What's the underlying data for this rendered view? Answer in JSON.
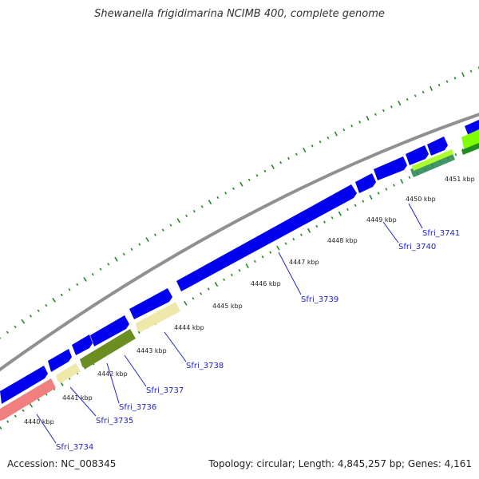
{
  "title": "Shewanella frigidimarina NCIMB 400, complete genome",
  "footer": {
    "accession": "Accession: NC_008345",
    "info": "Topology: circular; Length: 4,845,257 bp; Genes: 4,161"
  },
  "colors": {
    "backbone": "#909090",
    "forward_gene": "#0000ee",
    "reverse_gene_blue": "#0000ee",
    "pink_gene": "#f08080",
    "tan_gene": "#eee8aa",
    "olive_gene": "#6b8e23",
    "lime_gene": "#7fff00",
    "tick": "#228b22",
    "label": "#2222cc"
  },
  "kbp_ticks": [
    {
      "label": "4440 kbp",
      "pos": 4440
    },
    {
      "label": "4441 kbp",
      "pos": 4441
    },
    {
      "label": "4442 kbp",
      "pos": 4442
    },
    {
      "label": "4443 kbp",
      "pos": 4443
    },
    {
      "label": "4444 kbp",
      "pos": 4444
    },
    {
      "label": "4445 kbp",
      "pos": 4445
    },
    {
      "label": "4446 kbp",
      "pos": 4446
    },
    {
      "label": "4447 kbp",
      "pos": 4447
    },
    {
      "label": "4448 kbp",
      "pos": 4448
    },
    {
      "label": "4449 kbp",
      "pos": 4449
    },
    {
      "label": "4450 kbp",
      "pos": 4450
    },
    {
      "label": "4451 kbp",
      "pos": 4451
    }
  ],
  "gene_labels": [
    {
      "label": "Sfri_3734"
    },
    {
      "label": "Sfri_3735"
    },
    {
      "label": "Sfri_3736"
    },
    {
      "label": "Sfri_3737"
    },
    {
      "label": "Sfri_3738"
    },
    {
      "label": "Sfri_3739"
    },
    {
      "label": "Sfri_3740"
    },
    {
      "label": "Sfri_3741"
    }
  ]
}
